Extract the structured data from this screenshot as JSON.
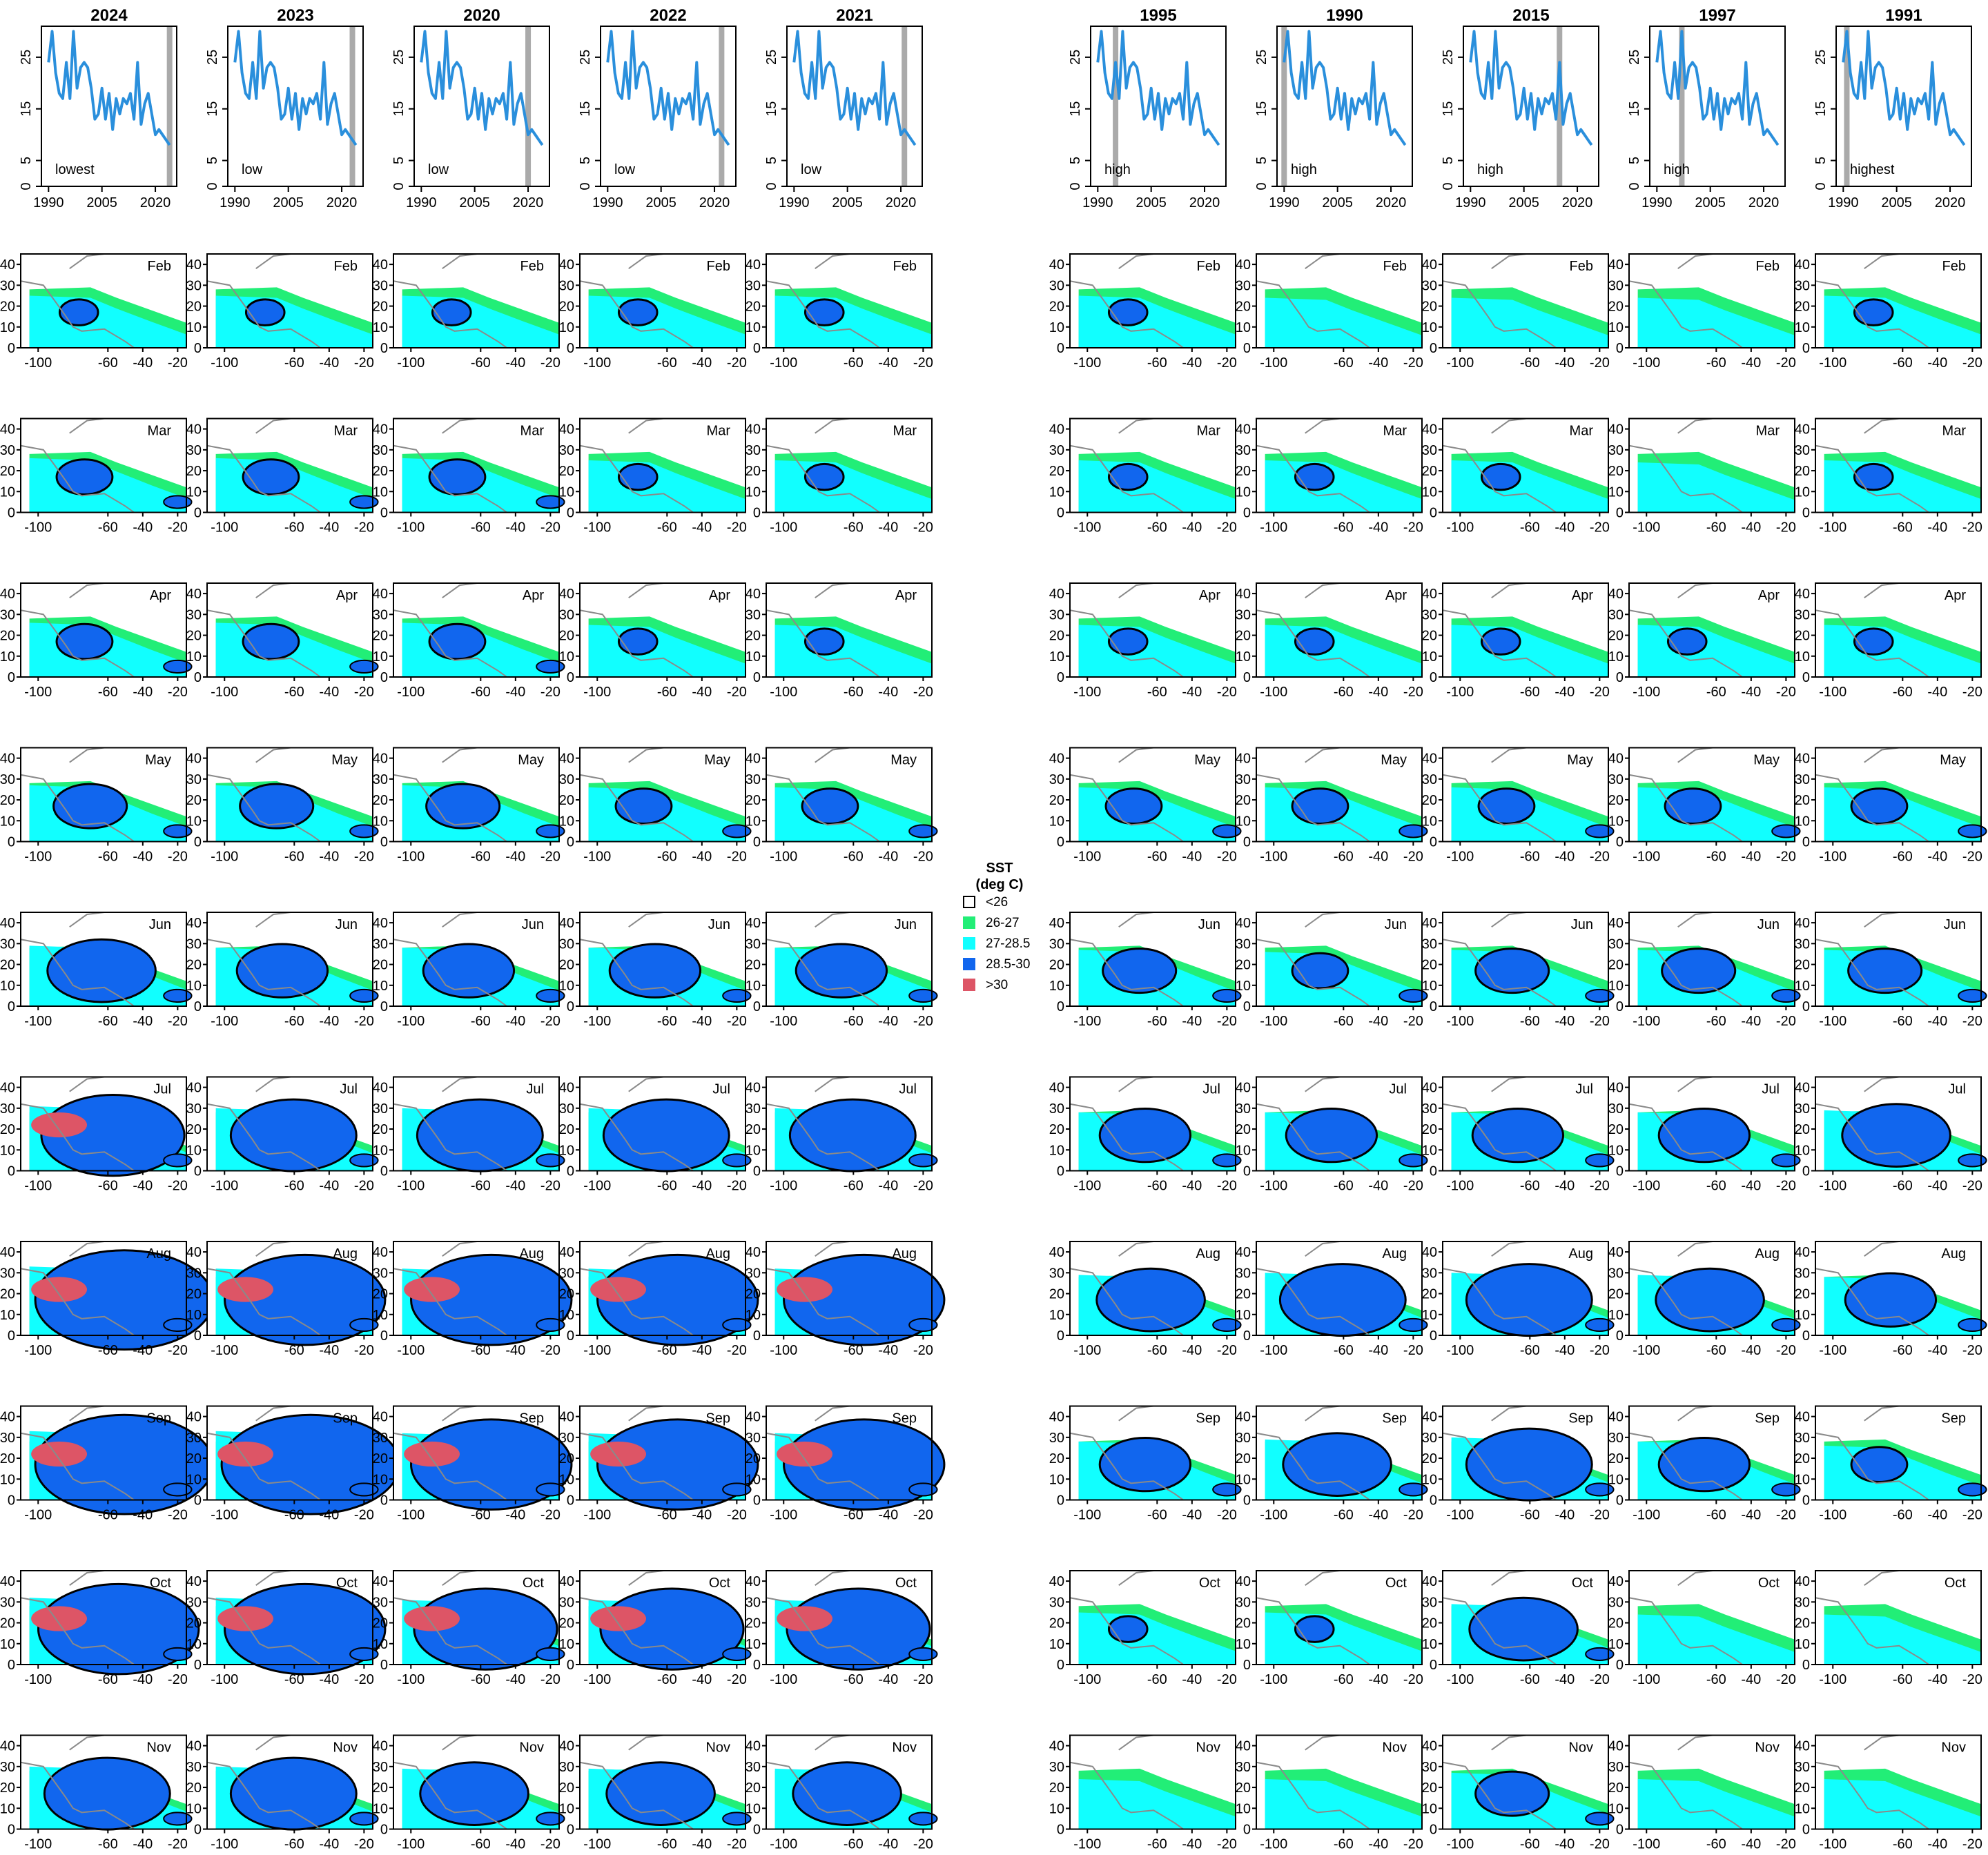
{
  "chart_data": {
    "type": "panel-grid",
    "x_axis": {
      "ticks": [
        1990,
        2005,
        2020
      ],
      "range": [
        1988,
        2026
      ]
    },
    "y_axis": {
      "ticks": [
        0,
        5,
        15,
        25
      ],
      "range": [
        0,
        31
      ]
    },
    "map_axis": {
      "x_ticks": [
        -100,
        -60,
        -40,
        -20
      ],
      "y_ticks": [
        0,
        10,
        20,
        30,
        40
      ],
      "x_range": [
        -110,
        -15
      ],
      "y_range": [
        0,
        45
      ]
    },
    "series_color": "#2a8fdc",
    "marker_color": "#aaaaaa",
    "series": {
      "name": "",
      "x": [
        1990,
        1991,
        1992,
        1993,
        1994,
        1995,
        1996,
        1997,
        1998,
        1999,
        2000,
        2001,
        2002,
        2003,
        2004,
        2005,
        2006,
        2007,
        2008,
        2009,
        2010,
        2011,
        2012,
        2013,
        2014,
        2015,
        2016,
        2017,
        2018,
        2019,
        2020,
        2021,
        2022,
        2023,
        2024
      ],
      "values": [
        24,
        30,
        22,
        18,
        17,
        24,
        17,
        30,
        19,
        23,
        24,
        23,
        19,
        13,
        14,
        19,
        13,
        18,
        11,
        17,
        14,
        17,
        16,
        18,
        13,
        24,
        12,
        16,
        18,
        14,
        10,
        11,
        10,
        9,
        8
      ]
    },
    "left_columns": [
      {
        "year": "2024",
        "label": "lowest",
        "marker": 2024
      },
      {
        "year": "2023",
        "label": "low",
        "marker": 2023
      },
      {
        "year": "2020",
        "label": "low",
        "marker": 2020
      },
      {
        "year": "2022",
        "label": "low",
        "marker": 2022
      },
      {
        "year": "2021",
        "label": "low",
        "marker": 2021
      }
    ],
    "right_columns": [
      {
        "year": "1995",
        "label": "high",
        "marker": 1995
      },
      {
        "year": "1990",
        "label": "high",
        "marker": 1990
      },
      {
        "year": "2015",
        "label": "high",
        "marker": 2015
      },
      {
        "year": "1997",
        "label": "high",
        "marker": 1997
      },
      {
        "year": "1991",
        "label": "highest",
        "marker": 1991
      }
    ],
    "months": [
      "Feb",
      "Mar",
      "Apr",
      "May",
      "Jun",
      "Jul",
      "Aug",
      "Sep",
      "Oct",
      "Nov"
    ],
    "legend": {
      "title_line1": "SST",
      "title_line2": "(deg C)",
      "placement": "center",
      "entries": [
        {
          "label": "<26",
          "color": "#ffffff"
        },
        {
          "label": "26-27",
          "color": "#22ee77"
        },
        {
          "label": "27-28.5",
          "color": "#11ffff"
        },
        {
          "label": "28.5-30",
          "color": "#1166ee"
        },
        {
          "label": ">30",
          "color": "#dd5566"
        }
      ]
    },
    "monthly_warm_pool": {
      "left": [
        [
          1,
          1,
          1,
          1,
          1
        ],
        [
          2,
          2,
          2,
          1,
          1
        ],
        [
          2,
          2,
          2,
          1,
          1
        ],
        [
          3,
          3,
          3,
          2,
          2
        ],
        [
          5,
          4,
          4,
          4,
          4
        ],
        [
          7,
          6,
          6,
          6,
          6
        ],
        [
          9,
          8,
          8,
          8,
          8
        ],
        [
          9,
          9,
          8,
          8,
          8
        ],
        [
          8,
          8,
          7,
          7,
          7
        ],
        [
          6,
          6,
          5,
          5,
          5
        ]
      ],
      "right": [
        [
          1,
          0,
          0,
          0,
          1
        ],
        [
          1,
          1,
          1,
          0,
          1
        ],
        [
          1,
          1,
          1,
          1,
          1
        ],
        [
          2,
          2,
          2,
          2,
          2
        ],
        [
          3,
          2,
          3,
          3,
          3
        ],
        [
          4,
          4,
          4,
          4,
          5
        ],
        [
          5,
          6,
          6,
          5,
          4
        ],
        [
          4,
          5,
          6,
          4,
          2
        ],
        [
          1,
          1,
          5,
          0,
          0
        ],
        [
          0,
          0,
          3,
          0,
          0
        ]
      ]
    }
  }
}
